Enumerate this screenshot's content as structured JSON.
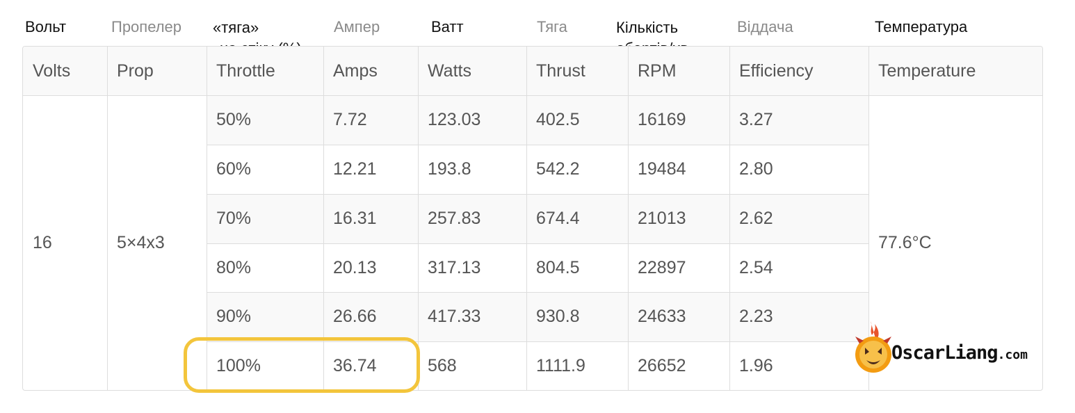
{
  "ua_headers": [
    {
      "text": "Вольт",
      "tone": "dark"
    },
    {
      "text": "Пропелер",
      "tone": "grey"
    },
    {
      "text": "«тяга»\nна стіку (%)",
      "tone": "dark"
    },
    {
      "text": "Ампер",
      "tone": "grey"
    },
    {
      "text": "Ватт",
      "tone": "dark"
    },
    {
      "text": "Тяга",
      "tone": "grey"
    },
    {
      "text": "Кількість\nобертів/хв",
      "tone": "dark"
    },
    {
      "text": "Віддача",
      "tone": "grey"
    },
    {
      "text": "Температура",
      "tone": "dark"
    }
  ],
  "table": {
    "columns": [
      "Volts",
      "Prop",
      "Throttle",
      "Amps",
      "Watts",
      "Thrust",
      "RPM",
      "Efficiency",
      "Temperature"
    ],
    "volts": "16",
    "prop": "5×4x3",
    "temperature": "77.6°C",
    "rows": [
      {
        "throttle": "50%",
        "amps": "7.72",
        "watts": "123.03",
        "thrust": "402.5",
        "rpm": "16169",
        "efficiency": "3.27"
      },
      {
        "throttle": "60%",
        "amps": "12.21",
        "watts": "193.8",
        "thrust": "542.2",
        "rpm": "19484",
        "efficiency": "2.80"
      },
      {
        "throttle": "70%",
        "amps": "16.31",
        "watts": "257.83",
        "thrust": "674.4",
        "rpm": "21013",
        "efficiency": "2.62"
      },
      {
        "throttle": "80%",
        "amps": "20.13",
        "watts": "317.13",
        "thrust": "804.5",
        "rpm": "22897",
        "efficiency": "2.54"
      },
      {
        "throttle": "90%",
        "amps": "26.66",
        "watts": "417.33",
        "thrust": "930.8",
        "rpm": "24633",
        "efficiency": "2.23"
      },
      {
        "throttle": "100%",
        "amps": "36.74",
        "watts": "568",
        "thrust": "1111.9",
        "rpm": "26652",
        "efficiency": "1.96"
      }
    ]
  },
  "logo": {
    "main": "OscarLiang",
    "domain": ".com"
  },
  "colors": {
    "highlight": "#f3c53c",
    "header_bg": "#f7f7f7",
    "stripe_bg": "#f9f9f9",
    "border": "#dddddd",
    "text": "#555555"
  }
}
